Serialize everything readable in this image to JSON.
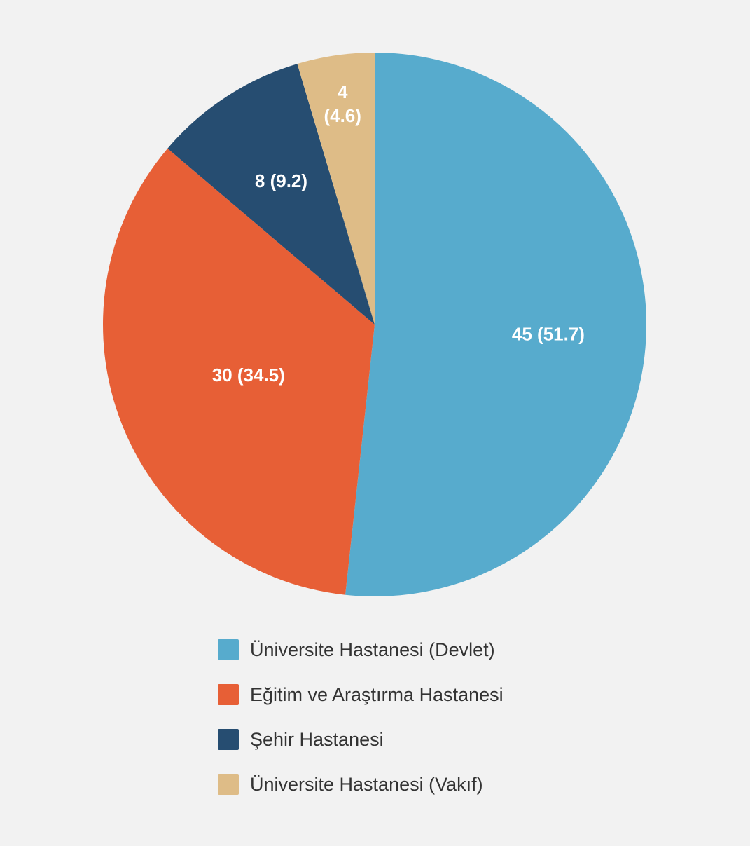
{
  "chart_data": {
    "type": "pie",
    "title": "",
    "categories": [
      "Üniversite Hastanesi (Devlet)",
      "Eğitim ve Araştırma Hastanesi",
      "Şehir Hastanesi",
      "Üniversite Hastanesi (Vakıf)"
    ],
    "values": [
      45,
      30,
      8,
      4
    ],
    "percentages": [
      51.7,
      34.5,
      9.2,
      4.6
    ],
    "data_labels": [
      "45 (51.7)",
      "30 (34.5)",
      "8 (9.2)",
      "4\n(4.6)"
    ],
    "colors": [
      "#57abcd",
      "#e75f36",
      "#264d71",
      "#debc87"
    ],
    "legend_position": "bottom",
    "start_angle": "top, clockwise"
  },
  "legend": {
    "items": [
      {
        "label": "Üniversite Hastanesi (Devlet)",
        "color": "#57abcd"
      },
      {
        "label": "Eğitim ve Araştırma Hastanesi",
        "color": "#e75f36"
      },
      {
        "label": "Şehir Hastanesi",
        "color": "#264d71"
      },
      {
        "label": "Üniversite Hastanesi (Vakıf)",
        "color": "#debc87"
      }
    ]
  },
  "colors": {
    "background": "#f2f2f2",
    "label_text": "#ffffff",
    "legend_text": "#333333"
  }
}
